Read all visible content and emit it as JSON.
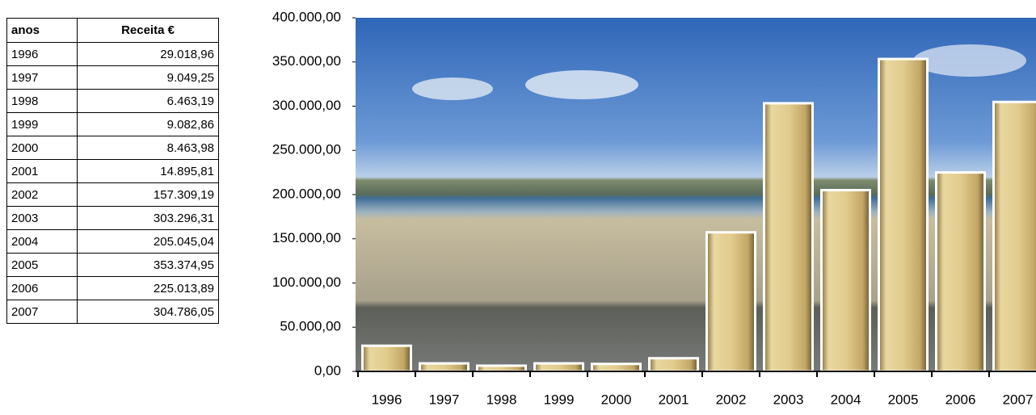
{
  "table": {
    "header": [
      "anos",
      "Receita €"
    ],
    "rows": [
      [
        "1996",
        "29.018,96"
      ],
      [
        "1997",
        "9.049,25"
      ],
      [
        "1998",
        "6.463,19"
      ],
      [
        "1999",
        "9.082,86"
      ],
      [
        "2000",
        "8.463,98"
      ],
      [
        "2001",
        "14.895,81"
      ],
      [
        "2002",
        "157.309,19"
      ],
      [
        "2003",
        "303.296,31"
      ],
      [
        "2004",
        "205.045,04"
      ],
      [
        "2005",
        "353.374,95"
      ],
      [
        "2006",
        "225.013,89"
      ],
      [
        "2007",
        "304.786,05"
      ]
    ]
  },
  "chart_data": {
    "type": "bar",
    "categories": [
      "1996",
      "1997",
      "1998",
      "1999",
      "2000",
      "2001",
      "2002",
      "2003",
      "2004",
      "2005",
      "2006",
      "2007"
    ],
    "values": [
      29018.96,
      9049.25,
      6463.19,
      9082.86,
      8463.98,
      14895.81,
      157309.19,
      303296.31,
      205045.04,
      353374.95,
      225013.89,
      304786.05
    ],
    "color": "#d9c284",
    "ylim": [
      0,
      400000
    ],
    "yticks": [
      {
        "value": 0,
        "label": "0,00"
      },
      {
        "value": 50000,
        "label": "50.000,00"
      },
      {
        "value": 100000,
        "label": "100.000,00"
      },
      {
        "value": 150000,
        "label": "150.000,00"
      },
      {
        "value": 200000,
        "label": "200.000,00"
      },
      {
        "value": 250000,
        "label": "250.000,00"
      },
      {
        "value": 300000,
        "label": "300.000,00"
      },
      {
        "value": 350000,
        "label": "350.000,00"
      },
      {
        "value": 400000,
        "label": "400.000,00"
      }
    ]
  }
}
